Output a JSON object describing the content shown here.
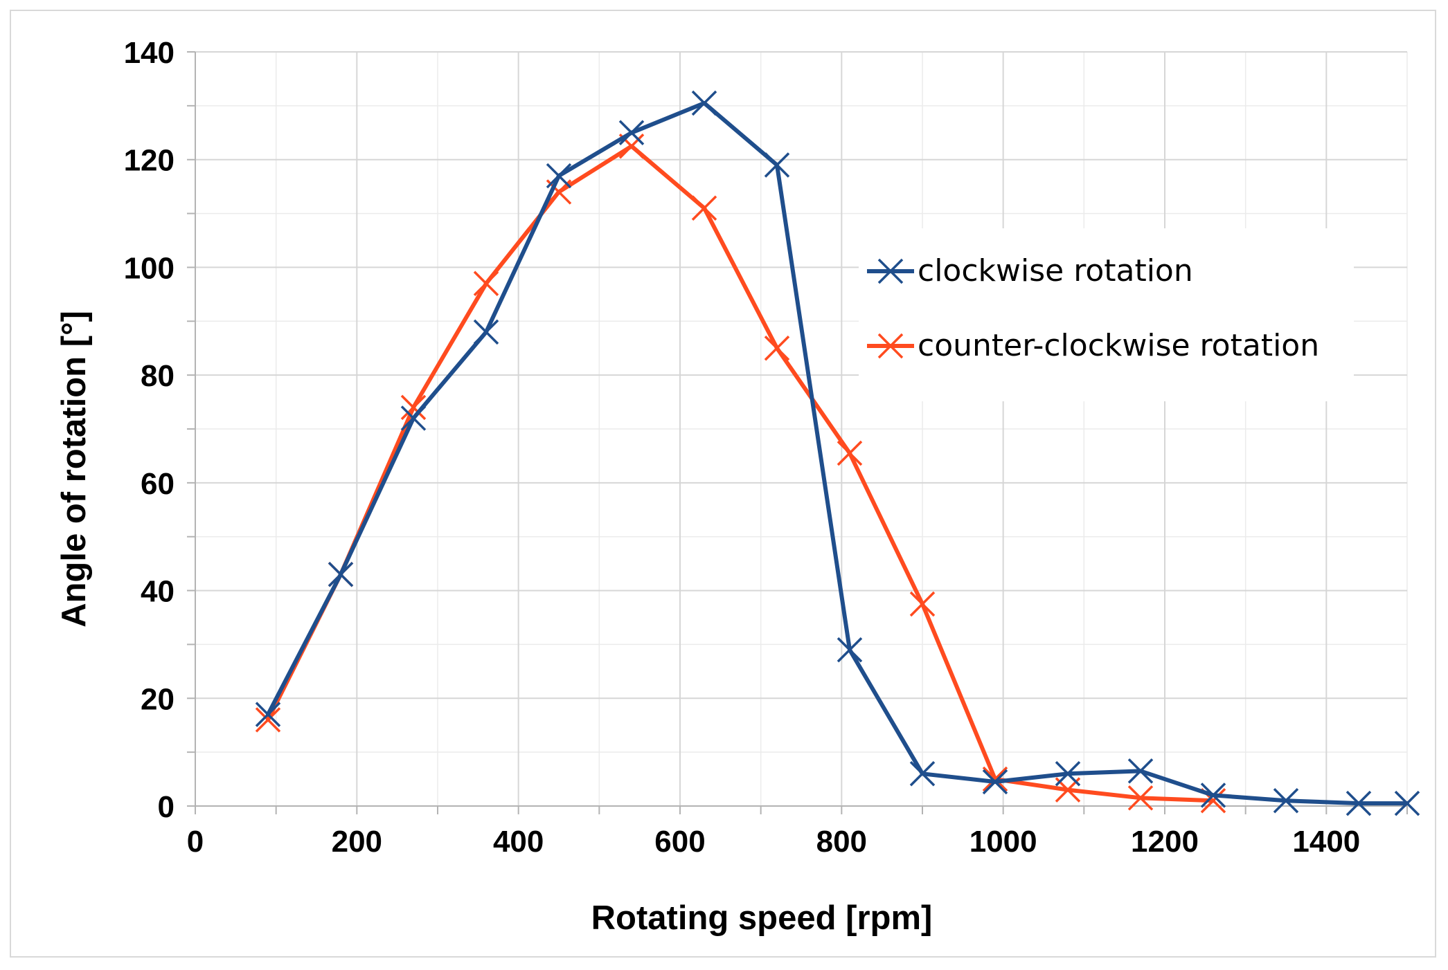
{
  "chart_data": {
    "type": "line",
    "title": "",
    "xlabel": "Rotating speed [rpm]",
    "ylabel": "Angle of rotation [°]",
    "xlim": [
      0,
      1500
    ],
    "ylim": [
      0,
      140
    ],
    "x_ticks": [
      0,
      200,
      400,
      600,
      800,
      1000,
      1200,
      1400
    ],
    "y_ticks": [
      0,
      20,
      40,
      60,
      80,
      100,
      120,
      140
    ],
    "x_tick_labels": [
      "0",
      "200",
      "400",
      "600",
      "800",
      "1000",
      "1200",
      "1400"
    ],
    "y_tick_labels": [
      "0",
      "20",
      "40",
      "60",
      "80",
      "100",
      "120",
      "140"
    ],
    "grid": true,
    "legend_position": "right",
    "series": [
      {
        "name": "clockwise rotation",
        "color": "#1f4e8c",
        "marker": "x",
        "x": [
          90,
          180,
          270,
          360,
          450,
          540,
          630,
          720,
          810,
          900,
          990,
          1080,
          1170,
          1260,
          1350,
          1440,
          1500
        ],
        "values": [
          17,
          43,
          72,
          88,
          117,
          125,
          130.5,
          119,
          29,
          6,
          4.5,
          6,
          6.5,
          2,
          1,
          0.5,
          0.5
        ]
      },
      {
        "name": "counter-clockwise rotation",
        "color": "#ff4b1f",
        "marker": "x",
        "x": [
          90,
          180,
          270,
          360,
          450,
          540,
          630,
          720,
          810,
          900,
          990,
          1080,
          1170,
          1260
        ],
        "values": [
          16,
          43,
          74,
          97,
          114,
          122.5,
          111,
          85,
          65.5,
          37.5,
          5,
          3,
          1.5,
          1
        ]
      }
    ]
  }
}
